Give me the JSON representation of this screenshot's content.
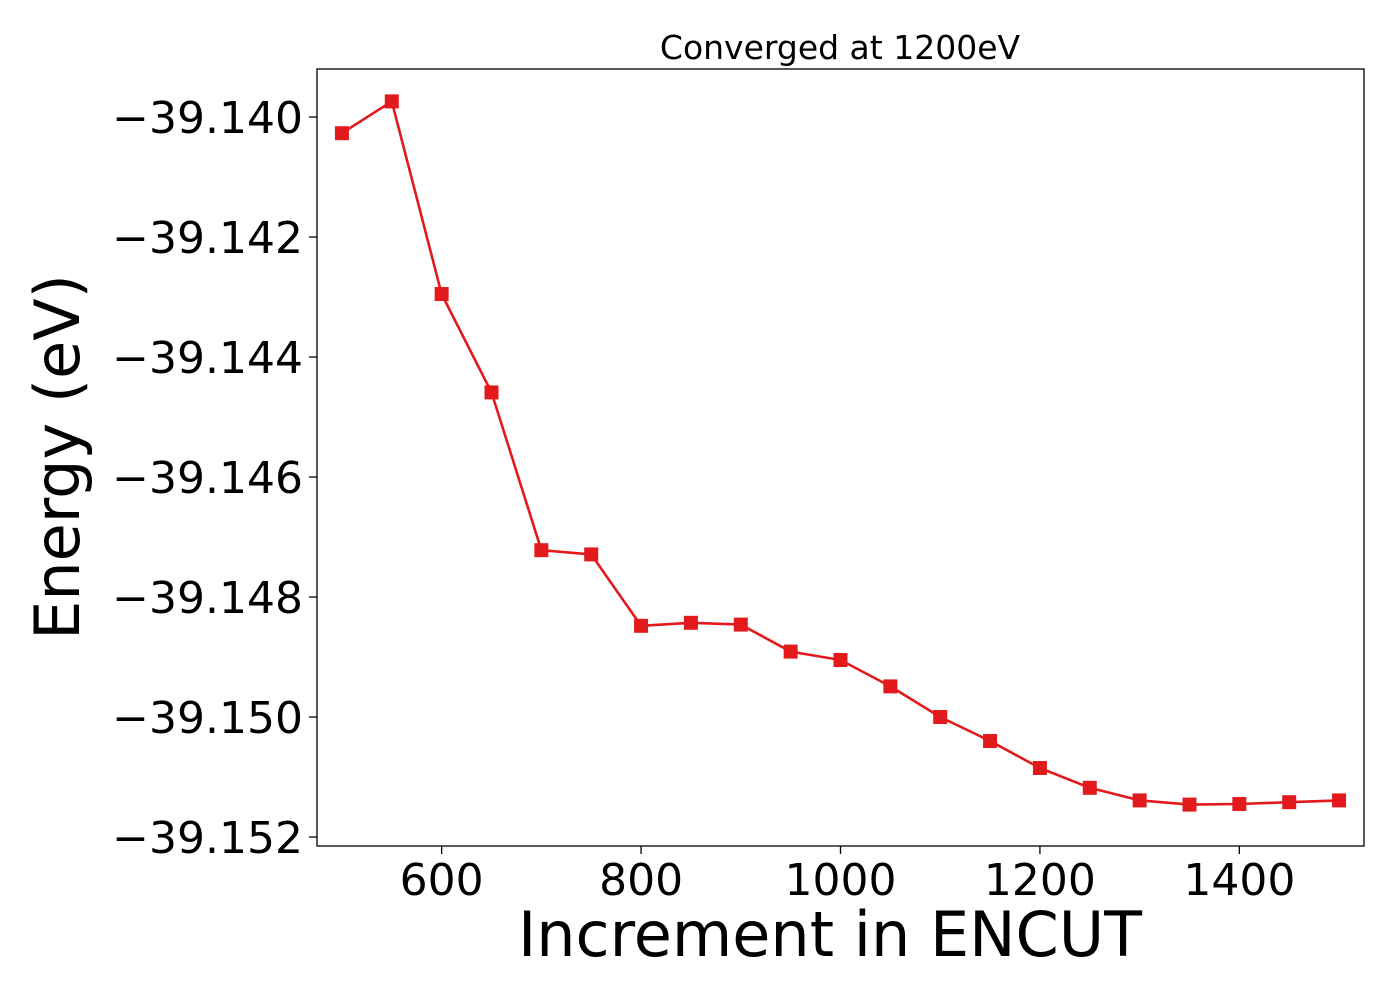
{
  "chart_data": {
    "type": "line",
    "title": "Converged at 1200eV",
    "xlabel": "Increment in ENCUT",
    "ylabel": "Energy (eV)",
    "xlim": [
      475,
      1525
    ],
    "ylim": [
      -39.15215,
      -39.1392
    ],
    "grid": false,
    "x_ticks": [
      600,
      800,
      1000,
      1200,
      1400
    ],
    "x_tick_labels": [
      "600",
      "800",
      "1000",
      "1200",
      "1400"
    ],
    "y_ticks": [
      -39.14,
      -39.142,
      -39.144,
      -39.146,
      -39.148,
      -39.15,
      -39.152
    ],
    "y_tick_labels": [
      "−39.140",
      "−39.142",
      "−39.144",
      "−39.146",
      "−39.148",
      "−39.150",
      "−39.152"
    ],
    "series": [
      {
        "color": "#e31a1c",
        "marker": "square",
        "x": [
          500,
          550,
          600,
          650,
          700,
          750,
          800,
          850,
          900,
          950,
          1000,
          1050,
          1100,
          1150,
          1200,
          1250,
          1300,
          1350,
          1400,
          1450,
          1500
        ],
        "values": [
          -39.14027,
          -39.13974,
          -39.14295,
          -39.14459,
          -39.14722,
          -39.14729,
          -39.14848,
          -39.14843,
          -39.14846,
          -39.14891,
          -39.14905,
          -39.14949,
          -39.15,
          -39.1504,
          -39.15085,
          -39.15118,
          -39.15139,
          -39.15146,
          -39.15145,
          -39.15142,
          -39.15139
        ]
      }
    ]
  }
}
